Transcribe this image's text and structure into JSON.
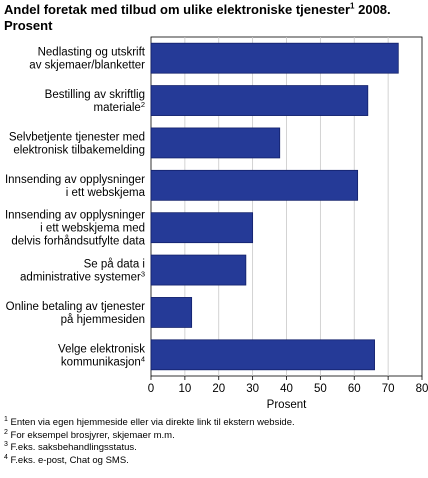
{
  "title": {
    "main": "Andel foretak med tilbud om ulike elektroniske tjenester",
    "note_mark": "1",
    "tail": " 2008.",
    "line2": "Prosent"
  },
  "chart_data": {
    "type": "bar",
    "orientation": "horizontal",
    "categories": [
      {
        "lines": [
          "Nedlasting og utskrift",
          "av skjemaer/blanketter"
        ],
        "note": ""
      },
      {
        "lines": [
          "Bestilling av skriftlig",
          "materiale"
        ],
        "note": "2"
      },
      {
        "lines": [
          "Selvbetjente tjenester med",
          "elektronisk tilbakemelding"
        ],
        "note": ""
      },
      {
        "lines": [
          "Innsending av opplysninger",
          "i ett webskjema"
        ],
        "note": ""
      },
      {
        "lines": [
          "Innsending av opplysninger",
          "i ett webskjema med",
          "delvis forhåndsutfylte data"
        ],
        "note": ""
      },
      {
        "lines": [
          "Se på data i",
          "administrative systemer"
        ],
        "note": "3"
      },
      {
        "lines": [
          "Online betaling av tjenester",
          "på hjemmesiden"
        ],
        "note": ""
      },
      {
        "lines": [
          "Velge elektronisk",
          "kommunikasjon"
        ],
        "note": "4"
      }
    ],
    "values": [
      73,
      64,
      38,
      61,
      30,
      28,
      12,
      66
    ],
    "xlabel": "Prosent",
    "xlim": [
      0,
      80
    ],
    "xticks": [
      "0",
      "10",
      "20",
      "30",
      "40",
      "50",
      "60",
      "70",
      "80"
    ],
    "grid": "vertical",
    "legend": "none",
    "bar_color": "#253a97",
    "bar_stroke": "#12206a"
  },
  "footnotes": [
    {
      "mark": "1",
      "text": " Enten via egen hjemmeside eller via direkte link til ekstern webside."
    },
    {
      "mark": "2",
      "text": " For eksempel brosjyrer, skjemaer m.m."
    },
    {
      "mark": "3",
      "text": " F.eks. saksbehandlingsstatus."
    },
    {
      "mark": "4",
      "text": " F.eks. e-post, Chat og SMS."
    }
  ]
}
